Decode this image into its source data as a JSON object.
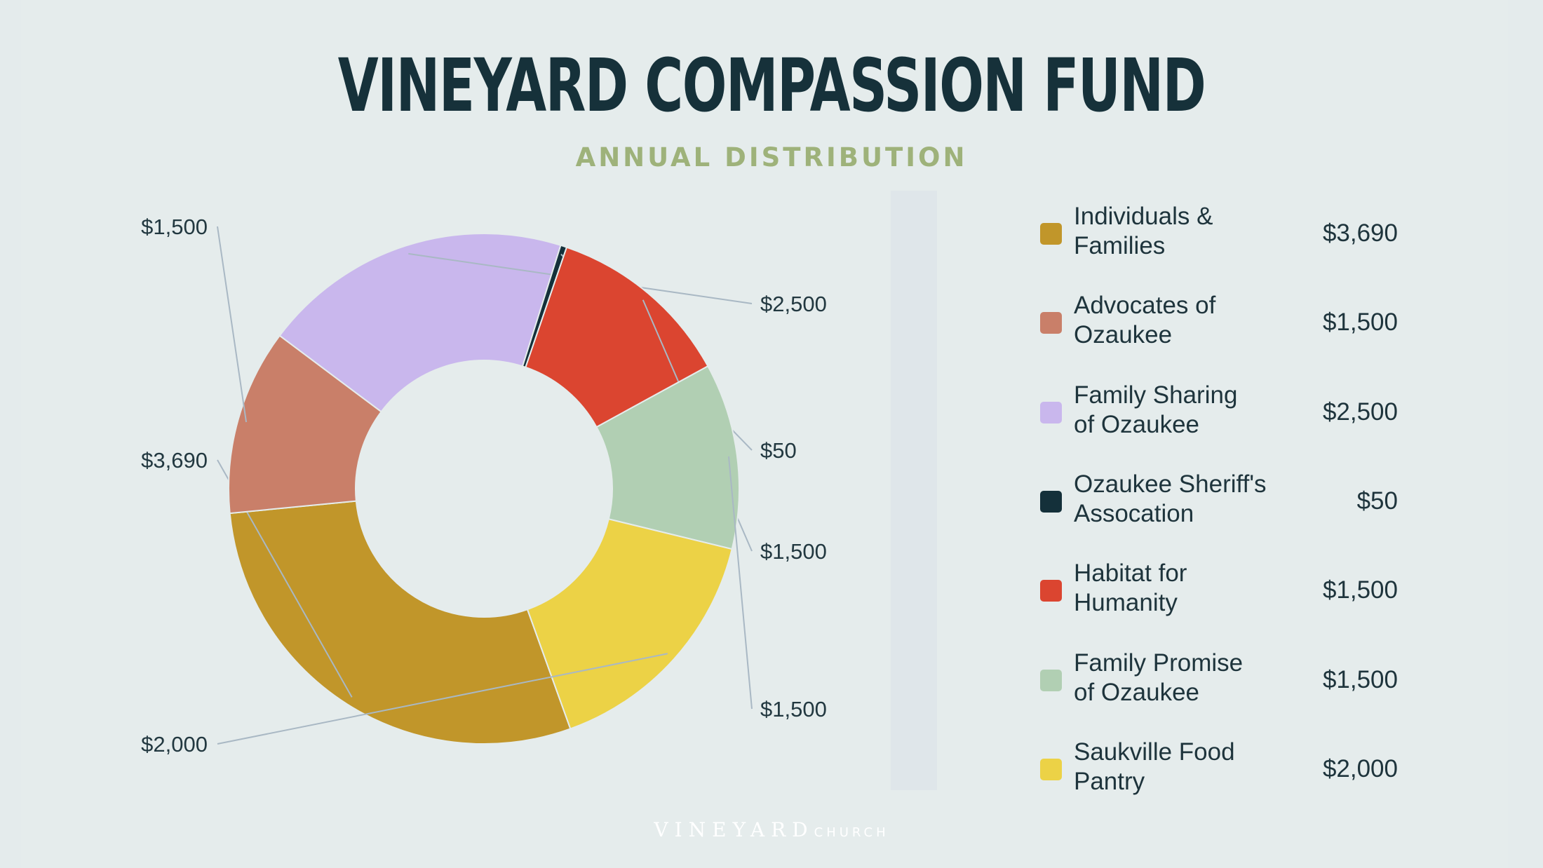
{
  "title": "VINEYARD COMPASSION FUND",
  "subtitle": "ANNUAL DISTRIBUTION",
  "footer": {
    "main": "VINEYARD",
    "sub": "CHURCH"
  },
  "chart_data": {
    "type": "pie",
    "donut": true,
    "categories": [
      "Individuals & Families",
      "Advocates of Ozaukee",
      "Family Sharing of Ozaukee",
      "Ozaukee Sheriff's Assocation",
      "Habitat for Humanity",
      "Family Promise of Ozaukee",
      "Saukville Food Pantry"
    ],
    "values": [
      3690,
      1500,
      2500,
      50,
      1500,
      1500,
      2000
    ],
    "value_labels": [
      "$3,690",
      "$1,500",
      "$2,500",
      "$50",
      "$1,500",
      "$1,500",
      "$2,000"
    ],
    "legend_labels": [
      "Individuals &\nFamilies",
      "Advocates of\nOzaukee",
      "Family Sharing\nof Ozaukee",
      "Ozaukee Sheriff's\nAssocation",
      "Habitat for\nHumanity",
      "Family Promise\nof Ozaukee",
      "Saukville Food\nPantry"
    ],
    "colors": [
      "#c1962a",
      "#c97f69",
      "#c9b7ed",
      "#14303a",
      "#db4530",
      "#b1cfb3",
      "#ecd246"
    ],
    "legend_position": "right"
  }
}
